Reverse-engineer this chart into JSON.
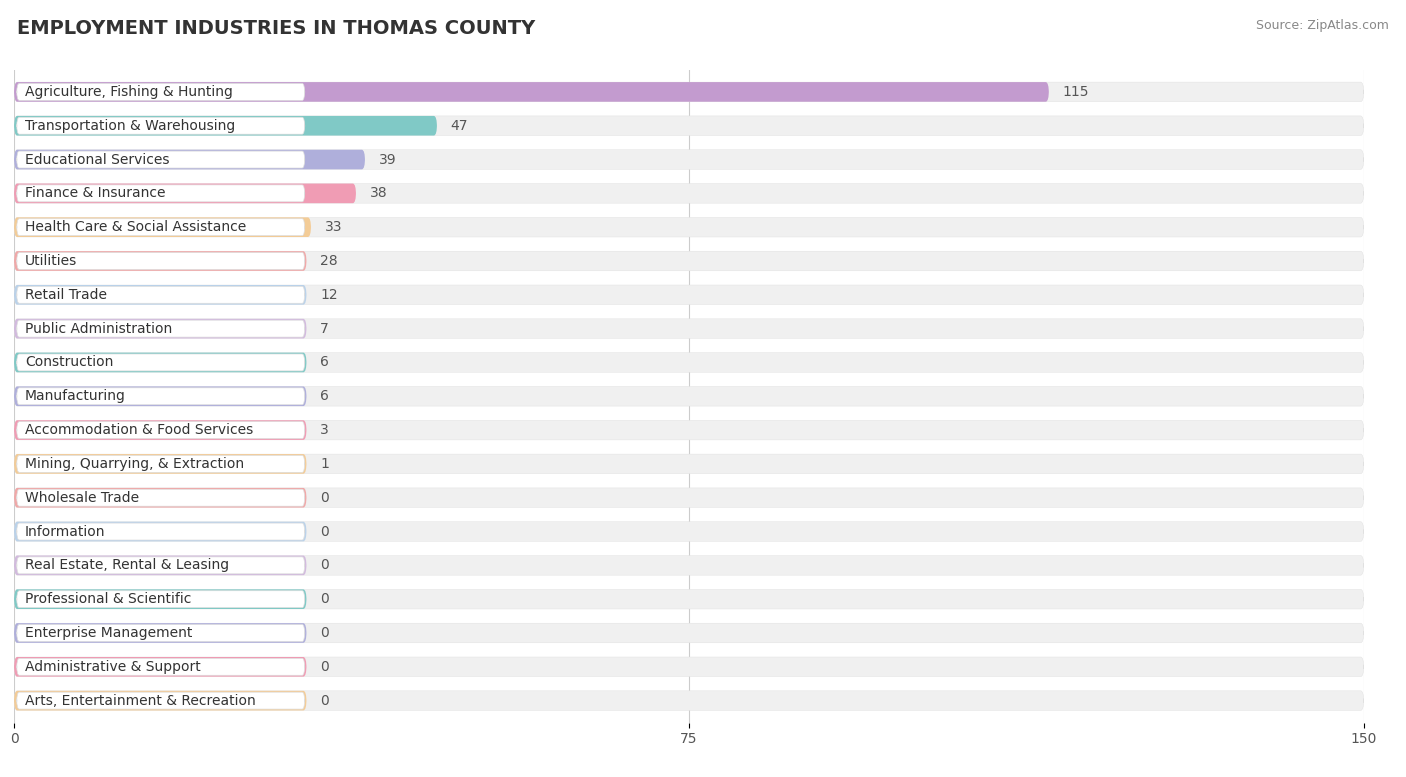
{
  "title": "EMPLOYMENT INDUSTRIES IN THOMAS COUNTY",
  "source": "Source: ZipAtlas.com",
  "categories": [
    "Agriculture, Fishing & Hunting",
    "Transportation & Warehousing",
    "Educational Services",
    "Finance & Insurance",
    "Health Care & Social Assistance",
    "Utilities",
    "Retail Trade",
    "Public Administration",
    "Construction",
    "Manufacturing",
    "Accommodation & Food Services",
    "Mining, Quarrying, & Extraction",
    "Wholesale Trade",
    "Information",
    "Real Estate, Rental & Leasing",
    "Professional & Scientific",
    "Enterprise Management",
    "Administrative & Support",
    "Arts, Entertainment & Recreation"
  ],
  "values": [
    115,
    47,
    39,
    38,
    33,
    28,
    12,
    7,
    6,
    6,
    3,
    1,
    0,
    0,
    0,
    0,
    0,
    0,
    0
  ],
  "bar_colors": [
    "#b57fc4",
    "#5bbdb8",
    "#9999d5",
    "#f080a0",
    "#f5c07a",
    "#f09090",
    "#a8c8e8",
    "#c8a8d8",
    "#5bbdb8",
    "#9999d5",
    "#f080a0",
    "#f5c07a",
    "#f09090",
    "#a8c8e8",
    "#c8a8d8",
    "#5bbdb8",
    "#9999d5",
    "#f080a0",
    "#f5c07a"
  ],
  "xlim": [
    0,
    150
  ],
  "xticks": [
    0,
    75,
    150
  ],
  "background_color": "#ffffff",
  "row_bg_color": "#f0f0f0",
  "label_bg_color": "#ffffff",
  "title_fontsize": 14,
  "label_fontsize": 10,
  "value_fontsize": 10,
  "source_fontsize": 9
}
